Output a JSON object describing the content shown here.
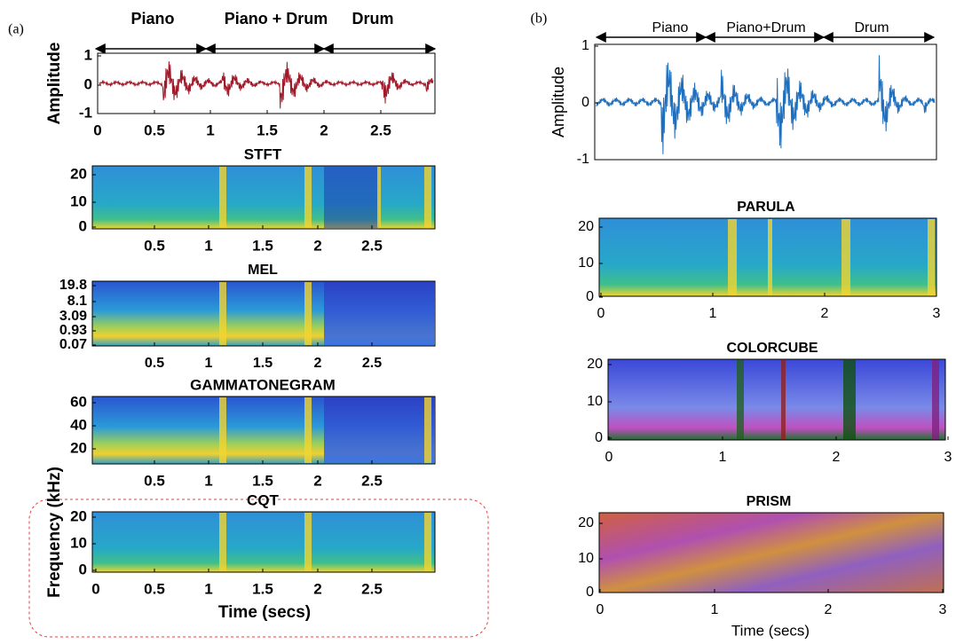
{
  "panel_a": {
    "label": "(a)",
    "segments": [
      "Piano",
      "Piano + Drum",
      "Drum"
    ],
    "waveform": {
      "y_label": "Amplitude",
      "yticks": [
        1,
        0,
        -1
      ],
      "xticks": [
        0,
        0.5,
        1,
        1.5,
        2,
        2.5
      ]
    },
    "stft": {
      "title": "STFT",
      "yticks": [
        20,
        10,
        0
      ],
      "xticks": [
        0.5,
        1,
        1.5,
        2,
        2.5
      ]
    },
    "mel": {
      "title": "MEL",
      "yticks": [
        19.8,
        8.1,
        3.09,
        0.93,
        0.07
      ],
      "xticks": [
        0.5,
        1,
        1.5,
        2,
        2.5
      ]
    },
    "gammatonegram": {
      "title": "GAMMATONEGRAM",
      "yticks": [
        60,
        40,
        20
      ],
      "xticks": [
        0.5,
        1,
        1.5,
        2,
        2.5
      ]
    },
    "cqt": {
      "title": "CQT",
      "yticks": [
        20,
        10,
        0
      ],
      "xticks": [
        0,
        0.5,
        1,
        1.5,
        2,
        2.5
      ]
    },
    "y_label": "Frequency (kHz)",
    "x_label": "Time (secs)"
  },
  "panel_b": {
    "label": "(b)",
    "segments": [
      "Piano",
      "Piano+Drum",
      "Drum"
    ],
    "waveform": {
      "y_label": "Amplitude",
      "yticks": [
        1,
        0,
        -1
      ]
    },
    "parula": {
      "title": "PARULA",
      "yticks": [
        20,
        10,
        0
      ],
      "xticks": [
        0,
        1,
        2,
        3
      ]
    },
    "colorcube": {
      "title": "COLORCUBE",
      "yticks": [
        20,
        10,
        0
      ],
      "xticks": [
        0,
        1,
        2,
        3
      ]
    },
    "prism": {
      "title": "PRISM",
      "yticks": [
        20,
        10,
        0
      ],
      "xticks": [
        0,
        1,
        2,
        3
      ]
    },
    "x_label": "Time (secs)"
  }
}
